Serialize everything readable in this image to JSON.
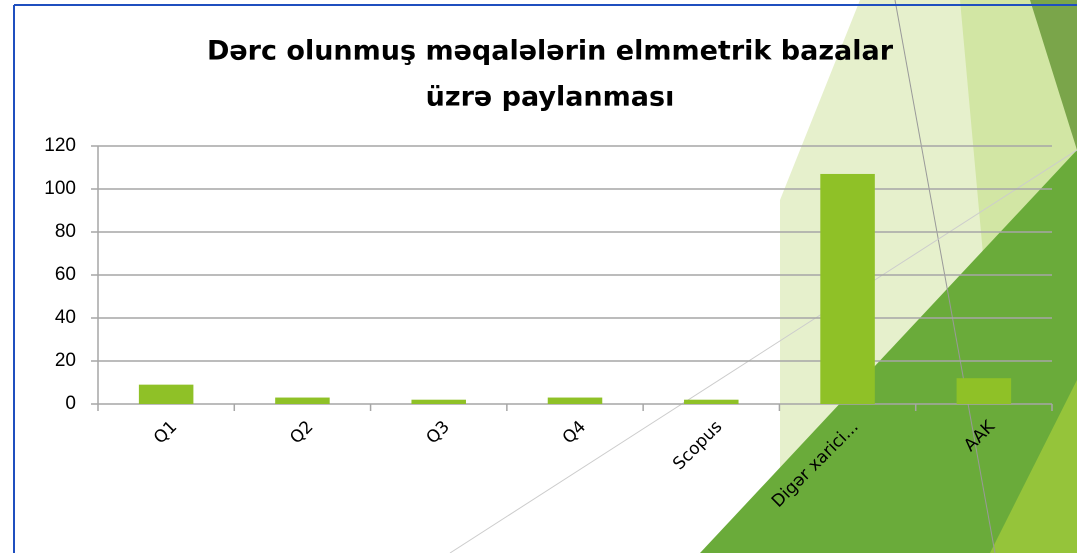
{
  "chart_data": {
    "type": "bar",
    "title": [
      "Dərc olunmuş məqalələrin elmmetrik bazalar",
      "üzrə paylanması"
    ],
    "categories": [
      "Q1",
      "Q2",
      "Q3",
      "Q4",
      "Scopus",
      "Digər xarici...",
      "AAK"
    ],
    "values": [
      9,
      3,
      2,
      3,
      2,
      107,
      12
    ],
    "color": "#8fc127",
    "ylim": [
      0,
      120
    ],
    "yticks": [
      0,
      20,
      40,
      60,
      80,
      100,
      120
    ],
    "grid": true
  }
}
